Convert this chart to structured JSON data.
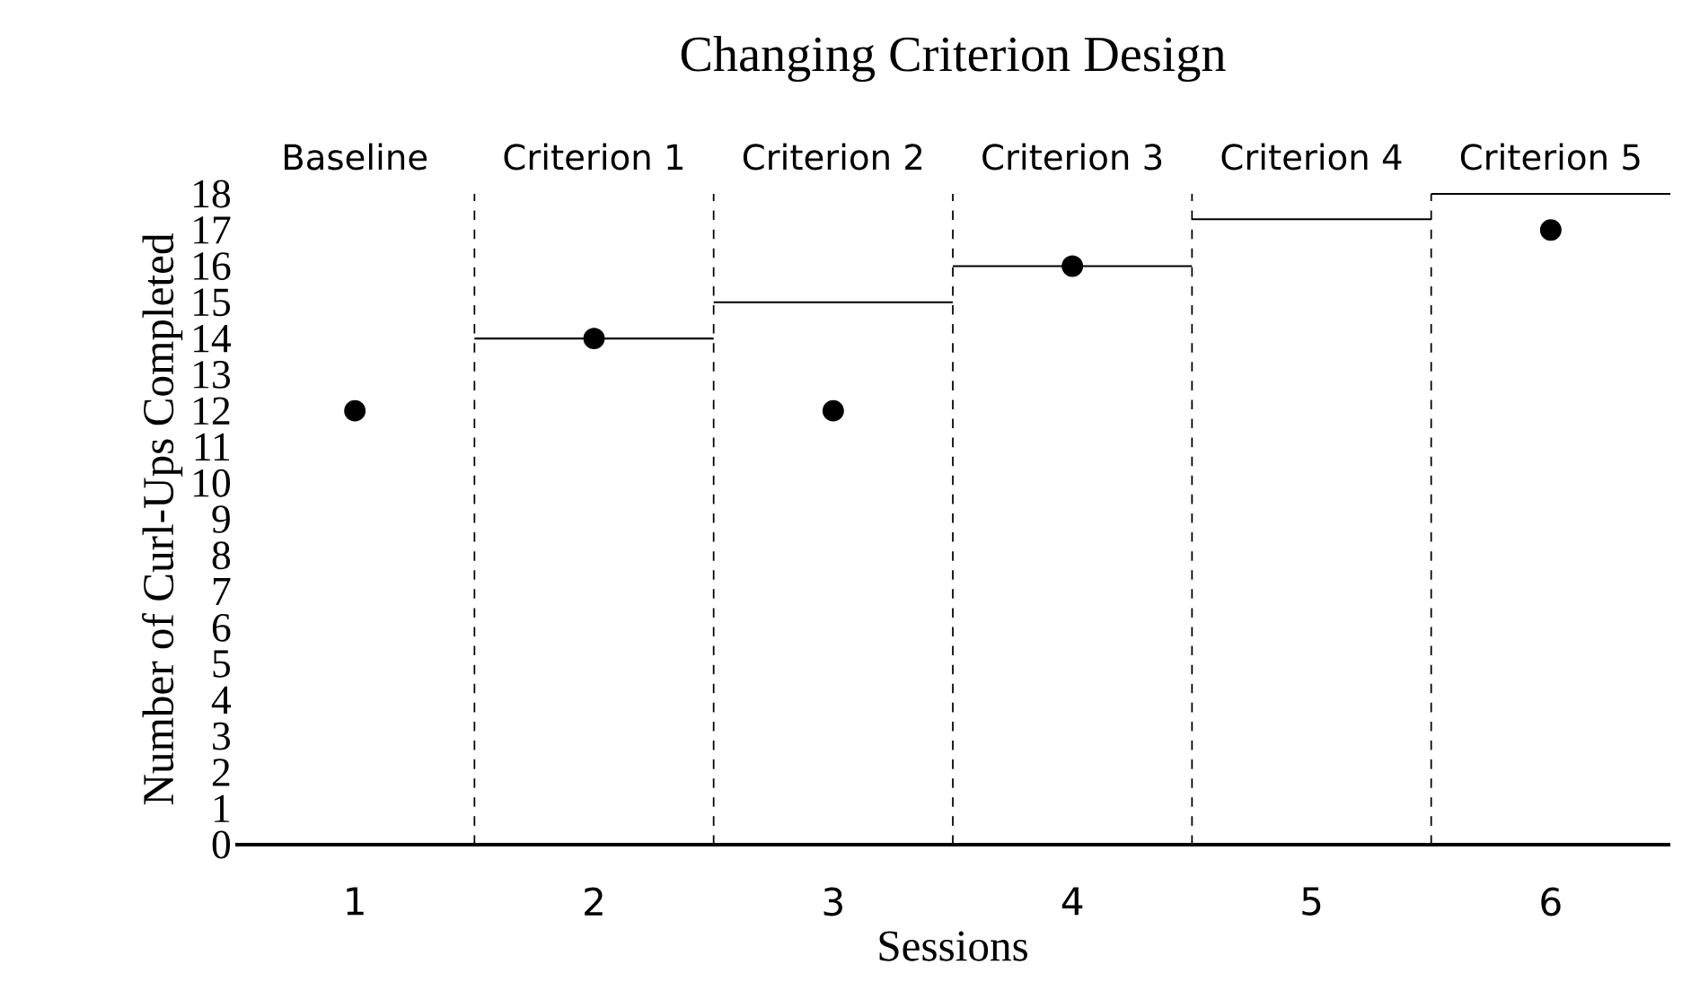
{
  "chart_data": {
    "type": "scatter",
    "title": "Changing Criterion Design",
    "xlabel": "Sessions",
    "ylabel": "Number of  Curl-Ups Completed",
    "xlim": [
      0.5,
      6.5
    ],
    "xticks": [
      1,
      2,
      3,
      4,
      5,
      6
    ],
    "ylim": [
      0,
      18
    ],
    "yticks": [
      0,
      1,
      2,
      3,
      4,
      5,
      6,
      7,
      8,
      9,
      10,
      11,
      12,
      13,
      14,
      15,
      16,
      17,
      18
    ],
    "grid": false,
    "series": [
      {
        "marker": "circle",
        "color": "#000000",
        "x": [
          1,
          2,
          3,
          4,
          6
        ],
        "values": [
          12,
          14,
          12,
          16,
          17
        ]
      },
      {
        "type": "line",
        "color": "#000000",
        "marker": "none",
        "x": [
          1.5,
          2.5
        ],
        "values": [
          14,
          14
        ]
      },
      {
        "type": "line",
        "color": "#000000",
        "marker": "none",
        "x": [
          2.5,
          3.5
        ],
        "values": [
          15,
          15
        ]
      },
      {
        "type": "line",
        "color": "#000000",
        "marker": "none",
        "x": [
          3.5,
          4.5
        ],
        "values": [
          16,
          16
        ]
      },
      {
        "type": "line",
        "color": "#000000",
        "marker": "none",
        "x": [
          4.5,
          5.5
        ],
        "values": [
          17.3,
          17.3
        ]
      },
      {
        "type": "line",
        "color": "#000000",
        "marker": "none",
        "x": [
          5.5,
          6.5
        ],
        "values": [
          18,
          18
        ]
      }
    ],
    "ref_lines": [
      {
        "axis": "x",
        "value": 1.5,
        "line_style": "dashed"
      },
      {
        "axis": "x",
        "value": 2.5,
        "line_style": "dashed"
      },
      {
        "axis": "x",
        "value": 3.5,
        "line_style": "dashed"
      },
      {
        "axis": "x",
        "value": 4.5,
        "line_style": "dashed"
      },
      {
        "axis": "x",
        "value": 5.5,
        "line_style": "dashed"
      }
    ],
    "annotations": [
      "Baseline",
      "Criterion 1",
      "Criterion 2",
      "Criterion 3",
      "Criterion 4",
      "Criterion 5"
    ]
  }
}
